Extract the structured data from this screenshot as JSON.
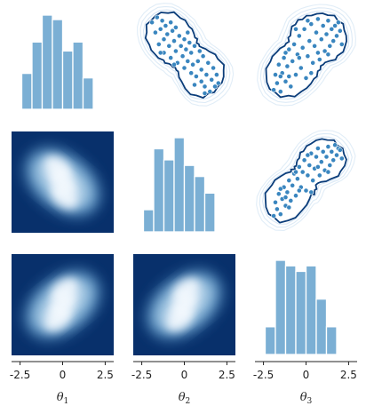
{
  "chart_data": {
    "type": "pairplot",
    "title": "",
    "variables": [
      "θ1",
      "θ2",
      "θ3"
    ],
    "axis_labels": [
      {
        "symbol": "θ",
        "subscript": "1"
      },
      {
        "symbol": "θ",
        "subscript": "2"
      },
      {
        "symbol": "θ",
        "subscript": "3"
      }
    ],
    "xlim": [
      -3,
      3
    ],
    "xticks": [
      "-2.5",
      "0",
      "2.5"
    ],
    "xtick_values": [
      -2.5,
      0,
      2.5
    ],
    "colors": {
      "hist": "#7bafd4",
      "hist_edge": "#ffffff",
      "point": "#3a86bf",
      "contour": "#0b3d7a",
      "outer_contour": "#c9def1",
      "heat_low": "#08306b",
      "heat_high": "#f7fbff"
    },
    "diagonal_histograms": [
      {
        "variable": "θ1",
        "bin_edges": [
          -2.4,
          -1.8,
          -1.2,
          -0.6,
          0.0,
          0.6,
          1.2,
          1.8,
          2.4
        ],
        "counts": [
          8,
          15,
          21,
          20,
          13,
          15,
          7,
          0
        ]
      },
      {
        "variable": "θ2",
        "bin_edges": [
          -2.4,
          -1.8,
          -1.2,
          -0.6,
          0.0,
          0.6,
          1.2,
          1.8,
          2.4
        ],
        "counts": [
          4,
          15,
          13,
          17,
          12,
          10,
          7,
          0
        ]
      },
      {
        "variable": "θ3",
        "bin_edges": [
          -2.4,
          -1.8,
          -1.2,
          -0.6,
          0.0,
          0.6,
          1.2,
          1.8,
          2.4
        ],
        "counts": [
          5,
          17,
          16,
          15,
          16,
          10,
          5,
          0
        ]
      }
    ],
    "upper_scatter": [
      {
        "x": "θ2",
        "y": "θ1",
        "points": [
          [
            -1.9,
            2.2
          ],
          [
            -1.7,
            1.6
          ],
          [
            -1.6,
            2.5
          ],
          [
            -1.5,
            0.9
          ],
          [
            -1.4,
            1.8
          ],
          [
            -1.3,
            2.3
          ],
          [
            -1.2,
            1.2
          ],
          [
            -1.2,
            0.4
          ],
          [
            -1.1,
            2.0
          ],
          [
            -1.0,
            1.5
          ],
          [
            -0.9,
            0.8
          ],
          [
            -0.8,
            2.2
          ],
          [
            -0.8,
            0.1
          ],
          [
            -0.7,
            1.7
          ],
          [
            -0.6,
            1.1
          ],
          [
            -0.5,
            0.5
          ],
          [
            -0.5,
            1.9
          ],
          [
            -0.4,
            -0.2
          ],
          [
            -0.3,
            1.4
          ],
          [
            -0.2,
            0.8
          ],
          [
            -0.1,
            0.2
          ],
          [
            0.0,
            1.2
          ],
          [
            0.0,
            -0.5
          ],
          [
            0.1,
            0.6
          ],
          [
            0.2,
            -0.1
          ],
          [
            0.3,
            1.0
          ],
          [
            0.4,
            -0.8
          ],
          [
            0.4,
            0.4
          ],
          [
            0.5,
            -0.3
          ],
          [
            0.6,
            0.8
          ],
          [
            0.7,
            -1.0
          ],
          [
            0.8,
            -0.1
          ],
          [
            0.9,
            0.5
          ],
          [
            1.0,
            -1.3
          ],
          [
            1.0,
            -0.6
          ],
          [
            1.1,
            0.2
          ],
          [
            1.2,
            -1.6
          ],
          [
            1.3,
            -0.9
          ],
          [
            1.4,
            -0.2
          ],
          [
            1.5,
            -1.9
          ],
          [
            1.6,
            -1.2
          ],
          [
            1.7,
            -0.5
          ],
          [
            1.8,
            -1.6
          ],
          [
            1.9,
            -0.9
          ],
          [
            2.0,
            -1.4
          ],
          [
            -1.4,
            0.4
          ],
          [
            0.2,
            1.6
          ],
          [
            -0.6,
            -0.3
          ],
          [
            1.2,
            -2.0
          ],
          [
            0.6,
            -1.5
          ]
        ]
      },
      {
        "x": "θ3",
        "y": "θ1",
        "points": [
          [
            -1.9,
            -1.8
          ],
          [
            -1.8,
            -0.9
          ],
          [
            -1.7,
            -1.4
          ],
          [
            -1.6,
            -0.3
          ],
          [
            -1.5,
            -1.9
          ],
          [
            -1.4,
            -0.8
          ],
          [
            -1.3,
            0.1
          ],
          [
            -1.2,
            -1.3
          ],
          [
            -1.1,
            -0.4
          ],
          [
            -1.0,
            0.6
          ],
          [
            -0.9,
            -1.6
          ],
          [
            -0.8,
            -0.1
          ],
          [
            -0.7,
            0.9
          ],
          [
            -0.6,
            -0.9
          ],
          [
            -0.5,
            0.3
          ],
          [
            -0.4,
            1.4
          ],
          [
            -0.3,
            -0.5
          ],
          [
            -0.2,
            0.7
          ],
          [
            -0.1,
            1.8
          ],
          [
            0.0,
            -1.1
          ],
          [
            0.1,
            0.2
          ],
          [
            0.2,
            1.1
          ],
          [
            0.3,
            2.1
          ],
          [
            0.4,
            -0.2
          ],
          [
            0.5,
            0.8
          ],
          [
            0.6,
            1.6
          ],
          [
            0.7,
            2.4
          ],
          [
            0.8,
            0.0
          ],
          [
            0.9,
            1.2
          ],
          [
            1.0,
            2.0
          ],
          [
            1.1,
            0.5
          ],
          [
            1.2,
            1.5
          ],
          [
            1.3,
            2.3
          ],
          [
            1.4,
            0.8
          ],
          [
            1.5,
            1.8
          ],
          [
            1.6,
            1.1
          ],
          [
            1.7,
            2.0
          ],
          [
            1.8,
            1.4
          ],
          [
            1.9,
            2.2
          ],
          [
            2.0,
            1.7
          ],
          [
            -1.0,
            -1.0
          ],
          [
            0.3,
            -0.8
          ],
          [
            -0.4,
            0.1
          ],
          [
            0.7,
            0.4
          ],
          [
            -1.5,
            -1.0
          ],
          [
            1.3,
            0.3
          ],
          [
            -0.6,
            1.8
          ],
          [
            0.1,
            2.3
          ],
          [
            -1.2,
            0.4
          ],
          [
            2.1,
            0.9
          ]
        ]
      },
      {
        "x": "θ3",
        "y": "θ2",
        "points": [
          [
            -1.9,
            -2.0
          ],
          [
            -1.8,
            -1.2
          ],
          [
            -1.7,
            -1.6
          ],
          [
            -1.6,
            -0.7
          ],
          [
            -1.5,
            -1.9
          ],
          [
            -1.4,
            -1.0
          ],
          [
            -1.3,
            -0.3
          ],
          [
            -1.2,
            -1.4
          ],
          [
            -1.1,
            -0.6
          ],
          [
            -1.0,
            0.1
          ],
          [
            -0.9,
            -1.1
          ],
          [
            -0.8,
            -0.2
          ],
          [
            -0.7,
            0.5
          ],
          [
            -0.6,
            -0.8
          ],
          [
            -0.5,
            0.2
          ],
          [
            -0.4,
            0.9
          ],
          [
            -0.3,
            -0.3
          ],
          [
            -0.2,
            0.6
          ],
          [
            -0.1,
            1.3
          ],
          [
            0.0,
            -0.5
          ],
          [
            0.1,
            0.4
          ],
          [
            0.2,
            1.0
          ],
          [
            0.3,
            1.7
          ],
          [
            0.4,
            0.1
          ],
          [
            0.5,
            0.8
          ],
          [
            0.6,
            1.5
          ],
          [
            0.7,
            2.0
          ],
          [
            0.8,
            0.4
          ],
          [
            0.9,
            1.2
          ],
          [
            1.0,
            1.8
          ],
          [
            1.1,
            0.7
          ],
          [
            1.2,
            1.5
          ],
          [
            1.3,
            2.1
          ],
          [
            1.4,
            1.0
          ],
          [
            1.5,
            1.8
          ],
          [
            1.6,
            1.3
          ],
          [
            1.7,
            2.2
          ],
          [
            1.8,
            1.6
          ],
          [
            1.9,
            2.0
          ],
          [
            2.0,
            1.9
          ],
          [
            -1.0,
            -1.5
          ],
          [
            0.3,
            -0.6
          ],
          [
            -0.4,
            -0.5
          ],
          [
            0.7,
            0.9
          ],
          [
            -1.5,
            -0.4
          ],
          [
            1.3,
            0.6
          ],
          [
            -0.6,
            0.6
          ],
          [
            0.1,
            1.6
          ],
          [
            -1.2,
            -0.9
          ],
          [
            2.1,
            1.4
          ]
        ]
      }
    ],
    "lower_density": [
      {
        "x": "θ1",
        "y": "θ2",
        "correlation": -0.75
      },
      {
        "x": "θ1",
        "y": "θ3",
        "correlation": 0.6
      },
      {
        "x": "θ2",
        "y": "θ3",
        "correlation": 0.75
      }
    ]
  }
}
